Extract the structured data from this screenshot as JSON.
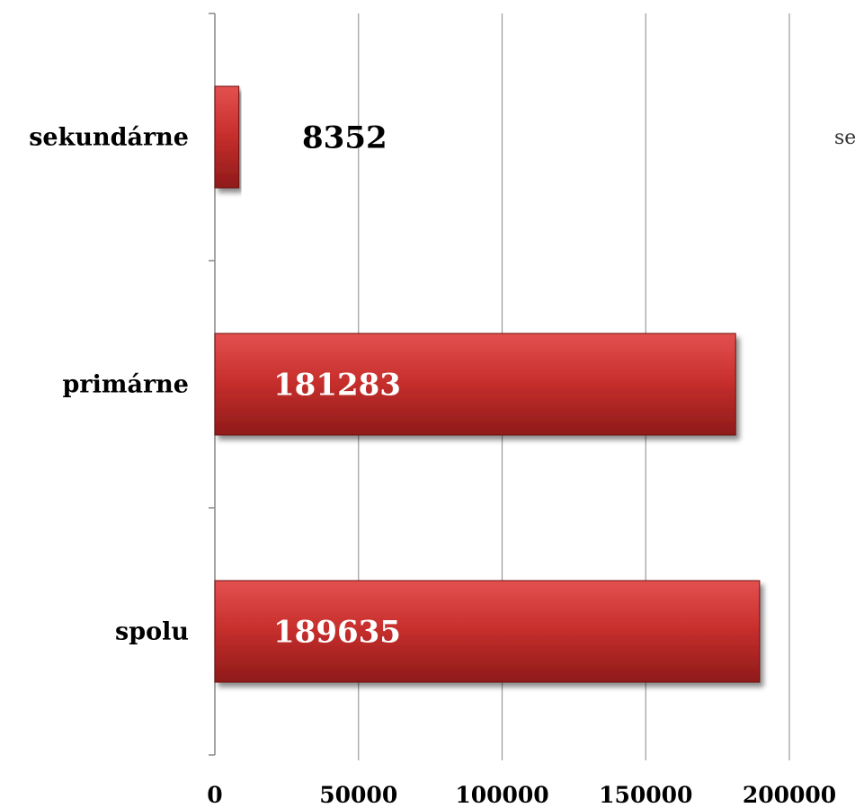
{
  "chart_data": {
    "type": "bar",
    "orientation": "horizontal",
    "categories": [
      "sekundárne",
      "primárne",
      "spolu"
    ],
    "values": [
      8352,
      181283,
      189635
    ],
    "data_labels": [
      "8352",
      "181283",
      "189635"
    ],
    "x_ticks": [
      "0",
      "50000",
      "100000",
      "150000",
      "200000"
    ],
    "xlim": [
      0,
      200000
    ],
    "grid": "vertical",
    "legend": "none",
    "colors": {
      "bar_top": "#e2514f",
      "bar_mid": "#c9302e",
      "bar_bottom": "#8f1a19",
      "bar_edge": "#6e1010",
      "grid": "#9a9a9a",
      "axis": "#888888",
      "label_inside": "#ffffff",
      "label_outside": "#000000"
    }
  },
  "edge_fragment": "se"
}
